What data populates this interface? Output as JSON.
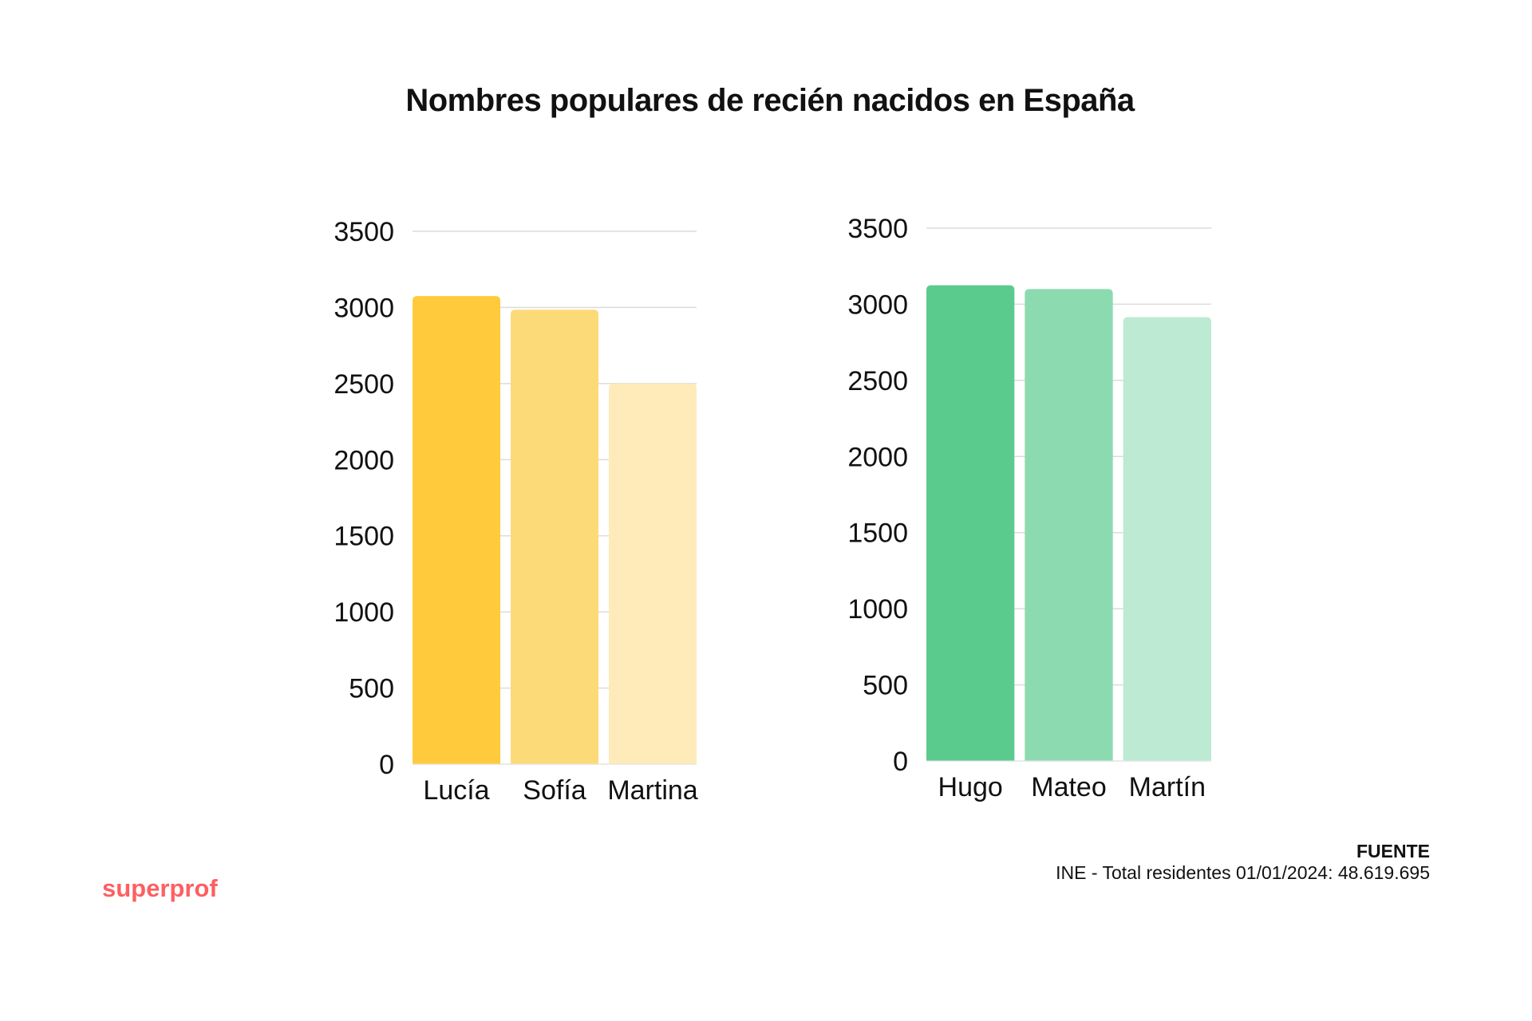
{
  "title": "Nombres populares de recién nacidos en España",
  "chart_data": [
    {
      "type": "bar",
      "categories": [
        "Lucía",
        "Sofía",
        "Martina"
      ],
      "values": [
        3075,
        2985,
        2500
      ],
      "colors": [
        "#ffcb3d",
        "#fdda78",
        "#feebb9"
      ],
      "ylim": [
        0,
        3500
      ],
      "yticks": [
        0,
        500,
        1000,
        1500,
        2000,
        2500,
        3000,
        3500
      ],
      "grid": true
    },
    {
      "type": "bar",
      "categories": [
        "Hugo",
        "Mateo",
        "Martín"
      ],
      "values": [
        3125,
        3100,
        2915
      ],
      "colors": [
        "#5bcb8d",
        "#8cdbb0",
        "#bdead2"
      ],
      "ylim": [
        0,
        3500
      ],
      "yticks": [
        0,
        500,
        1000,
        1500,
        2000,
        2500,
        3000,
        3500
      ],
      "grid": true
    }
  ],
  "source": {
    "heading": "FUENTE",
    "text": "INE - Total residentes 01/01/2024: 48.619.695"
  },
  "logo": "superprof"
}
